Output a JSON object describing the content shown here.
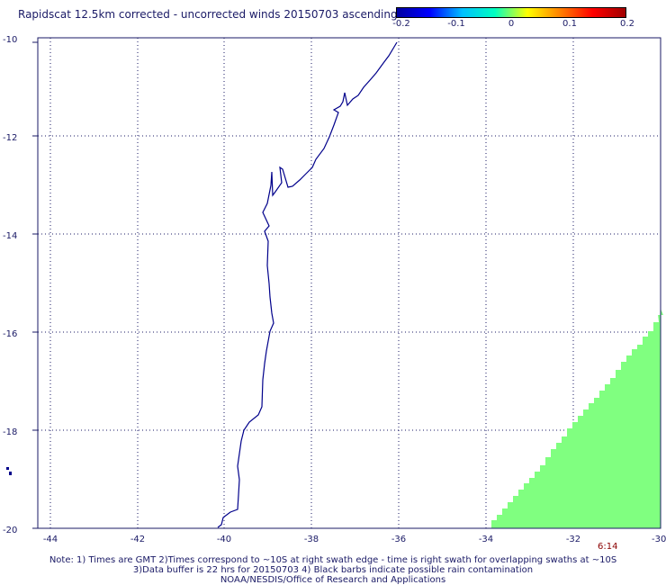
{
  "title": "Rapidscat 12.5km corrected - uncorrected winds 20150703 ascending",
  "colorbar": {
    "labels": [
      "-0.2",
      "-0.1",
      "0",
      "0.1",
      "0.2"
    ],
    "colors": [
      "#0000a0",
      "#0000ff",
      "#00c0ff",
      "#00ffc0",
      "#ffff00",
      "#ff8000",
      "#ff0000",
      "#a00000"
    ]
  },
  "map": {
    "lon_range": [
      -45,
      -30
    ],
    "lat_range": [
      -20,
      -10
    ],
    "lon_ticks": [
      "-44",
      "-42",
      "-40",
      "-38",
      "-36",
      "-34",
      "-32",
      "-30"
    ],
    "lat_ticks": [
      "-10",
      "-12",
      "-14",
      "-16",
      "-18",
      "-20"
    ],
    "coast_color": "#00008b",
    "swath_color": "#80ff80",
    "swath_time": "6:14"
  },
  "notes": {
    "line1": "Note: 1) Times are GMT 2)Times correspond to ~10S at right swath edge - time is right swath for overlapping swaths at ~10S",
    "line2": "3)Data buffer is 22 hrs for 20150703 4) Black barbs indicate possible rain contamination",
    "line3": "NOAA/NESDIS/Office of Research and Applications"
  }
}
